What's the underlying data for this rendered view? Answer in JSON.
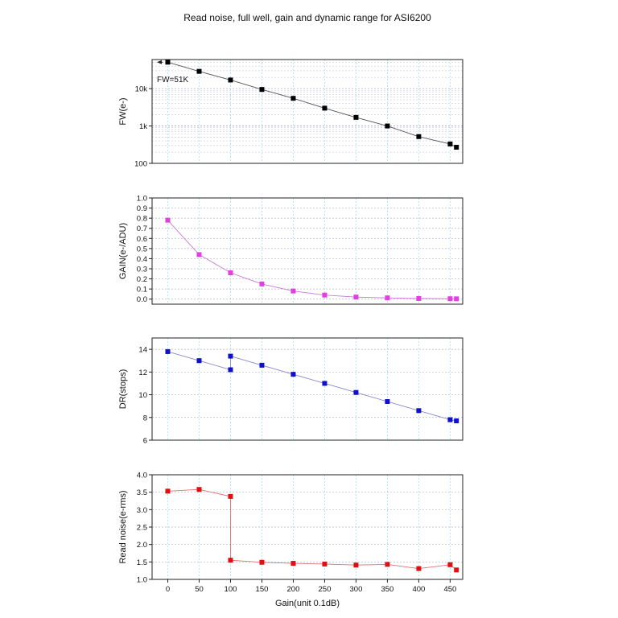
{
  "figure": {
    "title": "Read noise, full well, gain and dynamic range for ASI6200"
  },
  "chart_data": [
    {
      "type": "line",
      "id": "fw",
      "ylabel": "FW(e-)",
      "xlabel": "",
      "yscale": "log",
      "ylim": [
        100,
        60000
      ],
      "yticks": [
        100,
        1000,
        10000
      ],
      "yticklabels": [
        "100",
        "1k",
        "10k"
      ],
      "annotation": "FW=51K",
      "marker_color": "#000000",
      "line_color": "#555555",
      "x": [
        0,
        50,
        100,
        150,
        200,
        250,
        300,
        350,
        400,
        450,
        460
      ],
      "y": [
        51000,
        29000,
        17000,
        9500,
        5500,
        3000,
        1700,
        1000,
        520,
        330,
        270
      ]
    },
    {
      "type": "line",
      "id": "gain",
      "ylabel": "GAIN(e-/ADU)",
      "xlabel": "",
      "ylim": [
        -0.05,
        1.0
      ],
      "yticks": [
        0.0,
        0.1,
        0.2,
        0.3,
        0.4,
        0.5,
        0.6,
        0.7,
        0.8,
        0.9,
        1.0
      ],
      "yticklabels": [
        "0.0",
        "0.1",
        "0.2",
        "0.3",
        "0.4",
        "0.5",
        "0.6",
        "0.7",
        "0.8",
        "0.9",
        "1.0"
      ],
      "marker_color": "#e040e0",
      "line_color": "#c878d8",
      "x": [
        0,
        50,
        100,
        150,
        200,
        250,
        300,
        350,
        400,
        450,
        460
      ],
      "y": [
        0.78,
        0.44,
        0.26,
        0.15,
        0.08,
        0.04,
        0.02,
        0.012,
        0.006,
        0.004,
        0.003
      ]
    },
    {
      "type": "line",
      "id": "dr",
      "ylabel": "DR(stops)",
      "xlabel": "",
      "ylim": [
        6,
        15
      ],
      "yticks": [
        6,
        8,
        10,
        12,
        14
      ],
      "yticklabels": [
        "6",
        "8",
        "10",
        "12",
        "14"
      ],
      "marker_color": "#1010c8",
      "line_color": "#8888cc",
      "x": [
        0,
        50,
        100,
        100,
        150,
        200,
        250,
        300,
        350,
        400,
        450,
        460
      ],
      "y": [
        13.8,
        13.0,
        12.2,
        13.4,
        12.6,
        11.8,
        11.0,
        10.2,
        9.4,
        8.6,
        7.8,
        7.7
      ]
    },
    {
      "type": "line",
      "id": "rn",
      "ylabel": "Read noise(e-rms)",
      "xlabel": "Gain(unit 0.1dB)",
      "ylim": [
        1.0,
        4.0
      ],
      "yticks": [
        1.0,
        1.5,
        2.0,
        2.5,
        3.0,
        3.5,
        4.0
      ],
      "yticklabels": [
        "1.0",
        "1.5",
        "2.0",
        "2.5",
        "3.0",
        "3.5",
        "4.0"
      ],
      "xticks": [
        0,
        50,
        100,
        150,
        200,
        250,
        300,
        350,
        400,
        450
      ],
      "xticklabels": [
        "0",
        "50",
        "100",
        "150",
        "200",
        "250",
        "300",
        "350",
        "400",
        "450"
      ],
      "marker_color": "#dd1111",
      "line_color": "#e07070",
      "x": [
        0,
        50,
        100,
        100,
        150,
        200,
        250,
        300,
        350,
        400,
        450,
        460
      ],
      "y": [
        3.53,
        3.58,
        3.38,
        1.55,
        1.49,
        1.46,
        1.44,
        1.41,
        1.43,
        1.31,
        1.42,
        1.27
      ]
    }
  ],
  "xlim": [
    -25,
    470
  ]
}
